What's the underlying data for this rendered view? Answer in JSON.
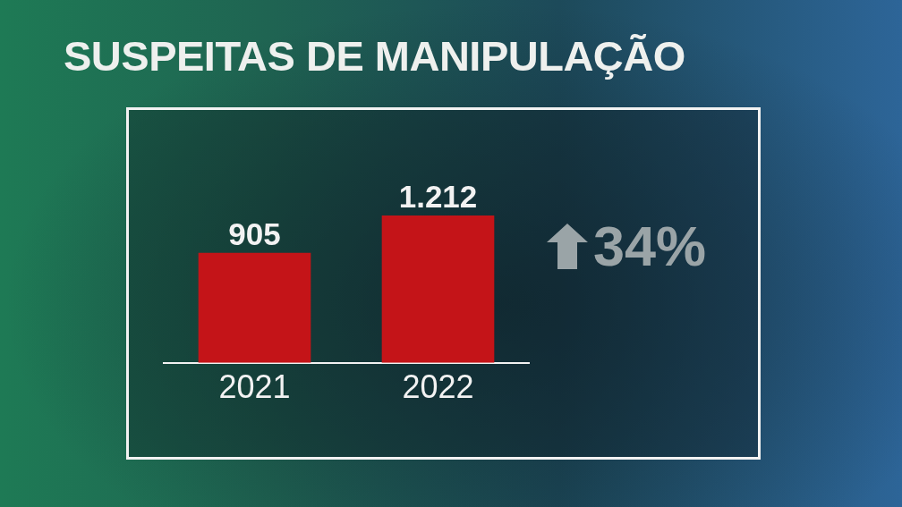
{
  "chart_data": {
    "type": "bar",
    "title": "SUSPEITAS DE MANIPULAÇÃO",
    "categories": [
      "2021",
      "2022"
    ],
    "values": [
      905,
      1212
    ],
    "value_labels": [
      "905",
      "1.212"
    ],
    "color": "#c41418",
    "annotations": [
      "34%"
    ]
  }
}
